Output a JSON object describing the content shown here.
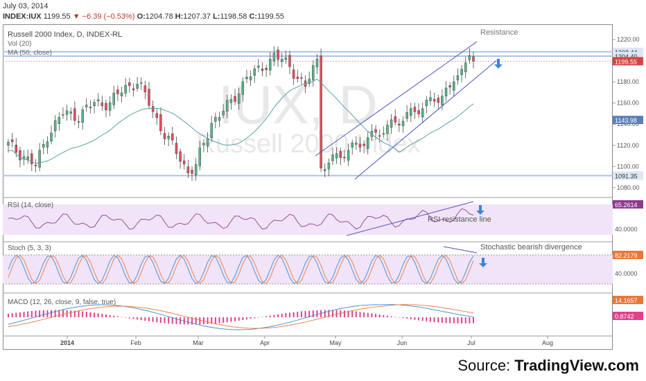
{
  "header": {
    "date": "July 03, 2014",
    "symbol": "INDEX:IUX",
    "last": "1199.55",
    "change": "−6.39 (−0.53%)",
    "o_label": "O:",
    "o": "1204.78",
    "h_label": "H:",
    "h": "1207.37",
    "l_label": "L:",
    "l": "1198.58",
    "c_label": "C:",
    "c": "1199.55"
  },
  "chart_data": [
    {
      "type": "candlestick",
      "title": "Russell 2000 Index, D, INDEX-RL",
      "watermark_big": "IUX, D",
      "watermark_small": "Russell 2000 Index",
      "legend": [
        "Vol (20)",
        "MA (50, close)"
      ],
      "y_ticks": [
        1080,
        1100,
        1120,
        1140,
        1160,
        1180,
        1200,
        1220
      ],
      "ylim": [
        1072,
        1226
      ],
      "price_tags": [
        {
          "label": "1208.44",
          "color": "#dce6f5",
          "value": 1208.44
        },
        {
          "label": "1204.40",
          "color": "#dce6f5",
          "value": 1204.4
        },
        {
          "label": "1199.55",
          "color": "#d64545",
          "value": 1199.55
        },
        {
          "label": "1143.98",
          "color": "#5b7fb5",
          "value": 1143.98
        },
        {
          "label": "1091.35",
          "color": "#dce6f5",
          "value": 1091.35
        }
      ],
      "horizontal_levels": [
        1208.44,
        1204.4,
        1091.35
      ],
      "annotations": {
        "resistance": "Resistance"
      },
      "x_labels": [
        "2014",
        "Feb",
        "Mar",
        "Apr",
        "May",
        "Jun",
        "Jul",
        "Aug"
      ],
      "colors": {
        "up": "#53b987",
        "down": "#eb4d5c",
        "ma": "#5aa0a8",
        "channel": "#4a50c8",
        "arrow": "#3a86d4"
      }
    },
    {
      "type": "line",
      "title": "RSI (14, close)",
      "value_tag": "65.2614",
      "tick": "40.0000",
      "annotation": "RSI resistance line",
      "color": "#8e3b8e",
      "band": [
        30,
        70
      ]
    },
    {
      "type": "line",
      "title": "Stoch (5, 3, 3)",
      "value_tag": "82.2179",
      "tick": "40.0000",
      "annotation": "Stochastic bearish divergence",
      "series": [
        {
          "color": "#3a86d4"
        },
        {
          "color": "#e8783a"
        }
      ],
      "band": [
        20,
        80
      ]
    },
    {
      "type": "bar",
      "title": "MACD (12, 26, close, 9, false, true)",
      "value_tags": [
        "14.1657",
        "0.8742"
      ],
      "colors": {
        "macd": "#3a86d4",
        "signal": "#e8783a",
        "hist": "#e0418b"
      }
    }
  ],
  "source": {
    "prefix": "Source: ",
    "name": "TradingView.com"
  }
}
